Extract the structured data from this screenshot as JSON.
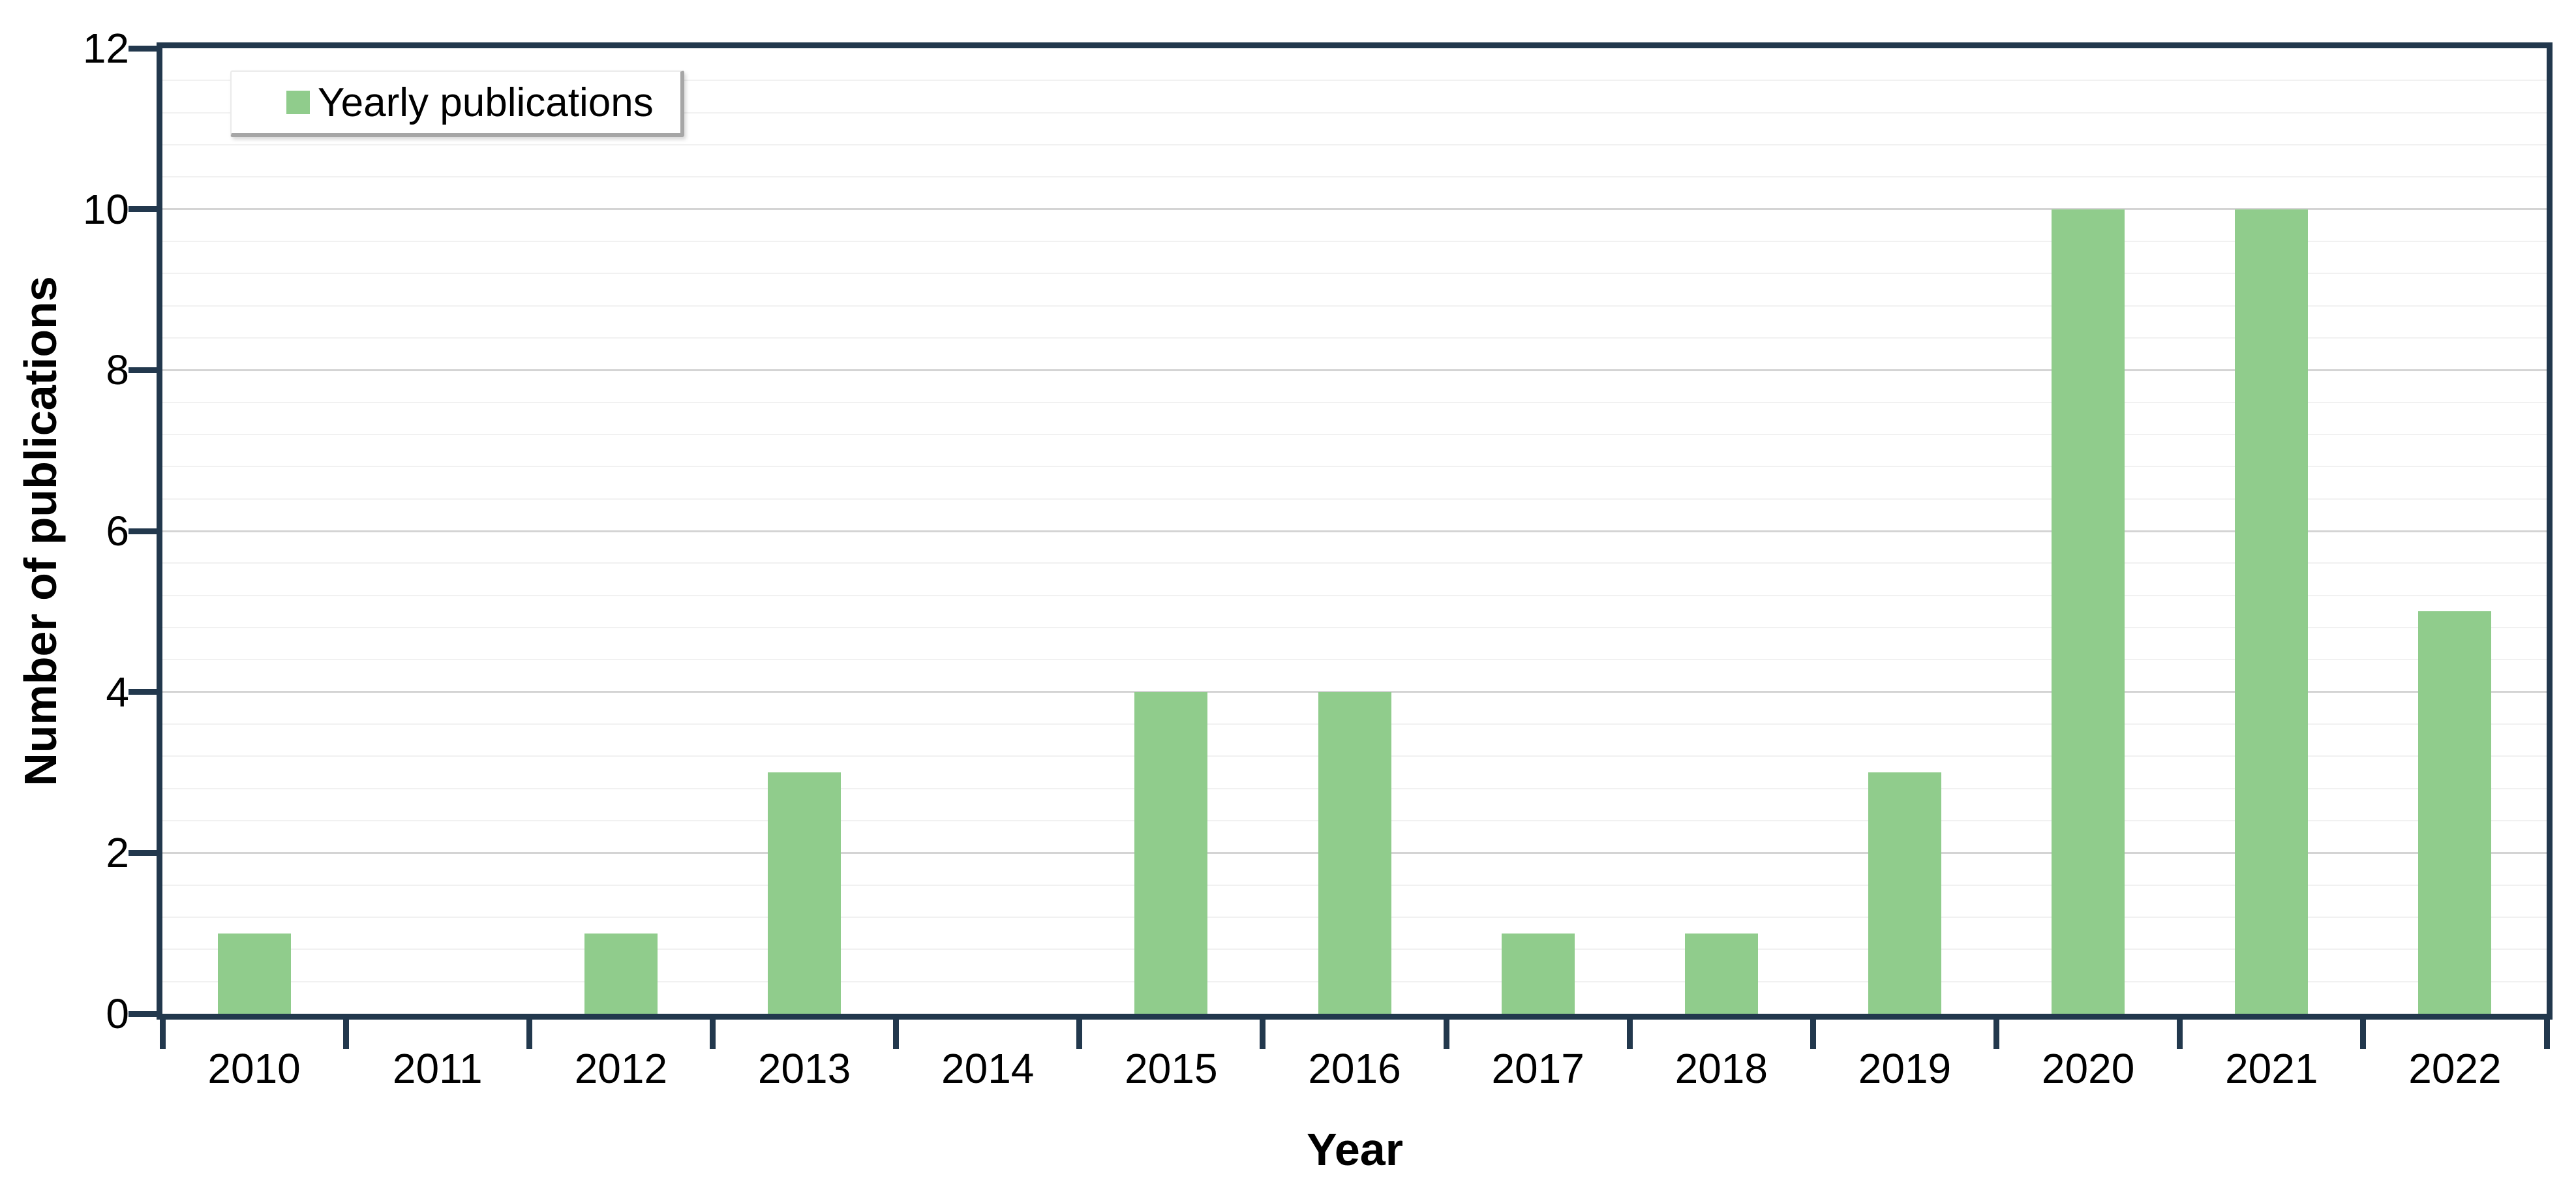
{
  "chart_data": {
    "type": "bar",
    "title": "",
    "categories": [
      "2010",
      "2011",
      "2012",
      "2013",
      "2014",
      "2015",
      "2016",
      "2017",
      "2018",
      "2019",
      "2020",
      "2021",
      "2022"
    ],
    "values": [
      1,
      0,
      1,
      3,
      0,
      4,
      4,
      1,
      1,
      3,
      10,
      10,
      5
    ],
    "series": [
      {
        "name": "Yearly publications",
        "values": [
          1,
          0,
          1,
          3,
          0,
          4,
          4,
          1,
          1,
          3,
          10,
          10,
          5
        ]
      }
    ],
    "xlabel": "Year",
    "ylabel": "Number of publications",
    "ylim": [
      0,
      12
    ],
    "yticks": [
      0,
      2,
      4,
      6,
      8,
      10,
      12
    ],
    "minor_grid_unit": 0.4,
    "grid": true,
    "legend": {
      "label": "Yearly publications",
      "position": "top-left"
    },
    "colors": {
      "bar": "#90CC8C",
      "axis": "#22384D",
      "major_grid": "#D4D4D4",
      "minor_grid": "#F1F1F1",
      "text": "#000000",
      "legend_border_light": "#EAEAEA",
      "legend_border_dark": "#A6A6A6",
      "background": "#FFFFFF"
    }
  }
}
